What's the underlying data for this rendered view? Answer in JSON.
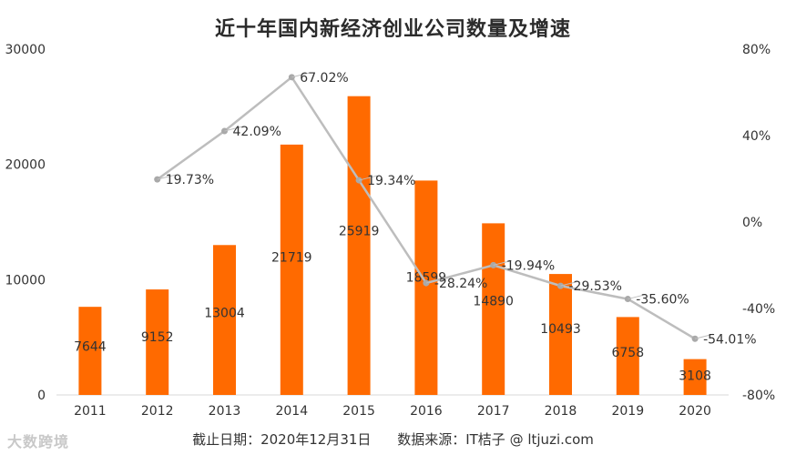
{
  "chart_data": {
    "type": "bar",
    "title": "近十年国内新经济创业公司数量及增速",
    "categories": [
      "2011",
      "2012",
      "2013",
      "2014",
      "2015",
      "2016",
      "2017",
      "2018",
      "2019",
      "2020"
    ],
    "series": [
      {
        "values": [
          7644,
          9152,
          13004,
          21719,
          25919,
          18599,
          14890,
          10493,
          6758,
          3108
        ],
        "value_labels": [
          "7644",
          "9152",
          "13004",
          "21719",
          "25919",
          "18599",
          "14890",
          "10493",
          "6758",
          "3108"
        ],
        "color": "#FF6A00"
      },
      {
        "type": "line",
        "axis": "right",
        "x": [
          "2012",
          "2013",
          "2014",
          "2015",
          "2016",
          "2017",
          "2018",
          "2019",
          "2020"
        ],
        "values": [
          19.73,
          42.09,
          67.02,
          19.34,
          -28.24,
          -19.94,
          -29.53,
          -35.6,
          -54.01
        ],
        "value_labels": [
          "19.73%",
          "42.09%",
          "67.02%",
          "19.34%",
          "-28.24%",
          "-19.94%",
          "-29.53%",
          "-35.60%",
          "-54.01%"
        ],
        "color": "#BDBDBD"
      }
    ],
    "y_left": {
      "ylim": [
        0,
        30000
      ],
      "ticks": [
        "0",
        "10000",
        "20000",
        "30000"
      ]
    },
    "y_right": {
      "ylim": [
        -80,
        80
      ],
      "ticks": [
        "80%",
        "40%",
        "0%",
        "-40%",
        "-80%"
      ]
    },
    "grid": false,
    "legend": "none"
  },
  "footnote": {
    "date_label": "截止日期：2020年12月31日",
    "source_label": "数据来源：IT桔子 @ ltjuzi.com"
  },
  "watermark": {
    "text": "大数跨境"
  }
}
